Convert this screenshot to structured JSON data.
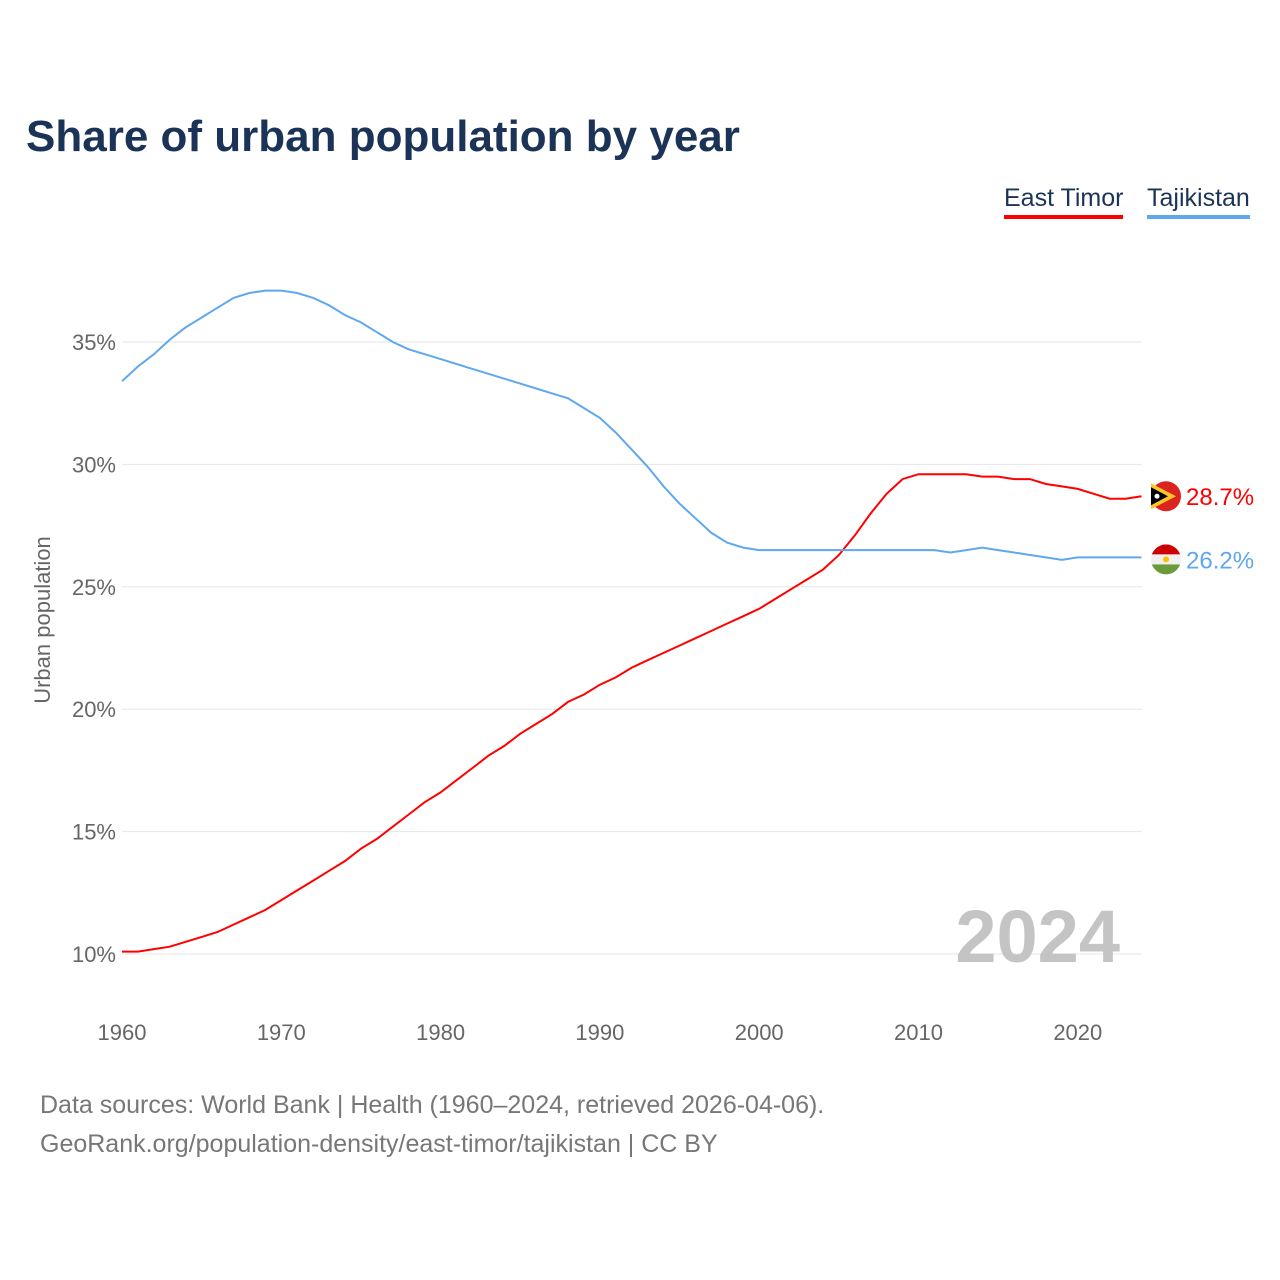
{
  "chart_data": {
    "type": "line",
    "title": "Share of urban population by year",
    "ylabel": "Urban population",
    "xlabel": "",
    "xlim": [
      1960,
      2024
    ],
    "ylim": [
      8.5,
      38
    ],
    "xticks": [
      "1960",
      "1970",
      "1980",
      "1990",
      "2000",
      "2010",
      "2020"
    ],
    "yticks": [
      "10%",
      "15%",
      "20%",
      "25%",
      "30%",
      "35%"
    ],
    "year_label": "2024",
    "x": [
      1960,
      1961,
      1962,
      1963,
      1964,
      1965,
      1966,
      1967,
      1968,
      1969,
      1970,
      1971,
      1972,
      1973,
      1974,
      1975,
      1976,
      1977,
      1978,
      1979,
      1980,
      1981,
      1982,
      1983,
      1984,
      1985,
      1986,
      1987,
      1988,
      1989,
      1990,
      1991,
      1992,
      1993,
      1994,
      1995,
      1996,
      1997,
      1998,
      1999,
      2000,
      2001,
      2002,
      2003,
      2004,
      2005,
      2006,
      2007,
      2008,
      2009,
      2010,
      2011,
      2012,
      2013,
      2014,
      2015,
      2016,
      2017,
      2018,
      2019,
      2020,
      2021,
      2022,
      2023,
      2024
    ],
    "series": [
      {
        "name": "East Timor",
        "color": "#ff0000",
        "end_label": "28.7%",
        "values": [
          10.1,
          10.1,
          10.2,
          10.3,
          10.5,
          10.7,
          10.9,
          11.2,
          11.5,
          11.8,
          12.2,
          12.6,
          13.0,
          13.4,
          13.8,
          14.3,
          14.7,
          15.2,
          15.7,
          16.2,
          16.6,
          17.1,
          17.6,
          18.1,
          18.5,
          19.0,
          19.4,
          19.8,
          20.3,
          20.6,
          21.0,
          21.3,
          21.7,
          22.0,
          22.3,
          22.6,
          22.9,
          23.2,
          23.5,
          23.8,
          24.1,
          24.5,
          24.9,
          25.3,
          25.7,
          26.3,
          27.1,
          28.0,
          28.8,
          29.4,
          29.6,
          29.6,
          29.6,
          29.6,
          29.5,
          29.5,
          29.4,
          29.4,
          29.2,
          29.1,
          29.0,
          28.8,
          28.6,
          28.6,
          28.7
        ]
      },
      {
        "name": "Tajikistan",
        "color": "#5fa8f0",
        "end_label": "26.2%",
        "values": [
          33.4,
          34.0,
          34.5,
          35.1,
          35.6,
          36.0,
          36.4,
          36.8,
          37.0,
          37.1,
          37.1,
          37.0,
          36.8,
          36.5,
          36.1,
          35.8,
          35.4,
          35.0,
          34.7,
          34.5,
          34.3,
          34.1,
          33.9,
          33.7,
          33.5,
          33.3,
          33.1,
          32.9,
          32.7,
          32.3,
          31.9,
          31.3,
          30.6,
          29.9,
          29.1,
          28.4,
          27.8,
          27.2,
          26.8,
          26.6,
          26.5,
          26.5,
          26.5,
          26.5,
          26.5,
          26.5,
          26.5,
          26.5,
          26.5,
          26.5,
          26.5,
          26.5,
          26.4,
          26.5,
          26.6,
          26.5,
          26.4,
          26.3,
          26.2,
          26.1,
          26.2,
          26.2,
          26.2,
          26.2,
          26.2
        ]
      }
    ]
  },
  "source_line1": "Data sources: World Bank | Health (1960–2024, retrieved 2026-04-06).",
  "source_line2": "GeoRank.org/population-density/east-timor/tajikistan | CC BY"
}
